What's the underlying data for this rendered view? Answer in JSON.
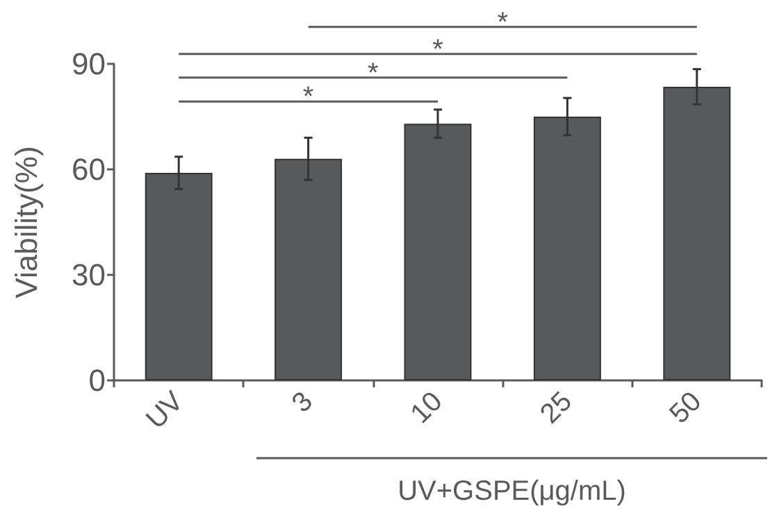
{
  "chart_data": {
    "type": "bar",
    "ylabel": "Viability(%)",
    "xlabel": "UV+GSPE(μg/mL)",
    "categories": [
      "UV",
      "3",
      "10",
      "25",
      "50"
    ],
    "values": [
      59,
      63,
      73,
      75,
      83.5
    ],
    "errors": [
      4.6,
      6,
      4,
      5.3,
      5
    ],
    "color": "#58595b",
    "ylim": [
      0,
      90
    ],
    "yticks": [
      0,
      30,
      60,
      90
    ],
    "grid": false,
    "annotations": [
      "*",
      "*",
      "*",
      "*"
    ]
  }
}
